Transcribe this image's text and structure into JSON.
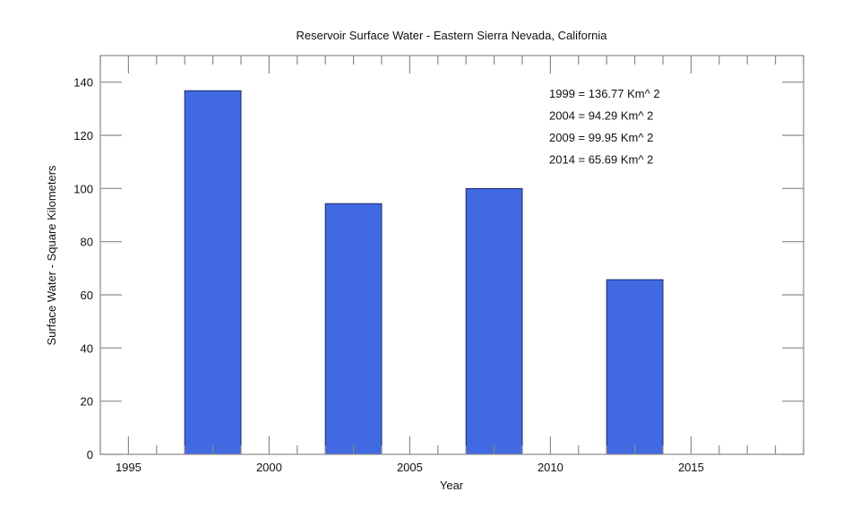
{
  "chart_data": {
    "type": "bar",
    "title": "Reservoir Surface Water - Eastern Sierra Nevada, California",
    "xlabel": "Year",
    "ylabel": "Surface Water - Square Kilometers",
    "xlim": [
      1994,
      2019
    ],
    "ylim": [
      0,
      150
    ],
    "xticks": [
      1995,
      2000,
      2005,
      2010,
      2015
    ],
    "yticks": [
      0,
      20,
      40,
      60,
      80,
      100,
      120,
      140
    ],
    "bars": [
      {
        "x0": 1997,
        "x1": 1999,
        "value": 136.77
      },
      {
        "x0": 2002,
        "x1": 2004,
        "value": 94.29
      },
      {
        "x0": 2007,
        "x1": 2009,
        "value": 99.95
      },
      {
        "x0": 2012,
        "x1": 2014,
        "value": 65.69
      }
    ],
    "annotations": [
      "1999 = 136.77 Km^ 2",
      "2004 = 94.29 Km^ 2",
      "2009 = 99.95 Km^ 2",
      "2014 = 65.69 Km^ 2"
    ],
    "bar_color": "#4169e1",
    "grid": false
  }
}
